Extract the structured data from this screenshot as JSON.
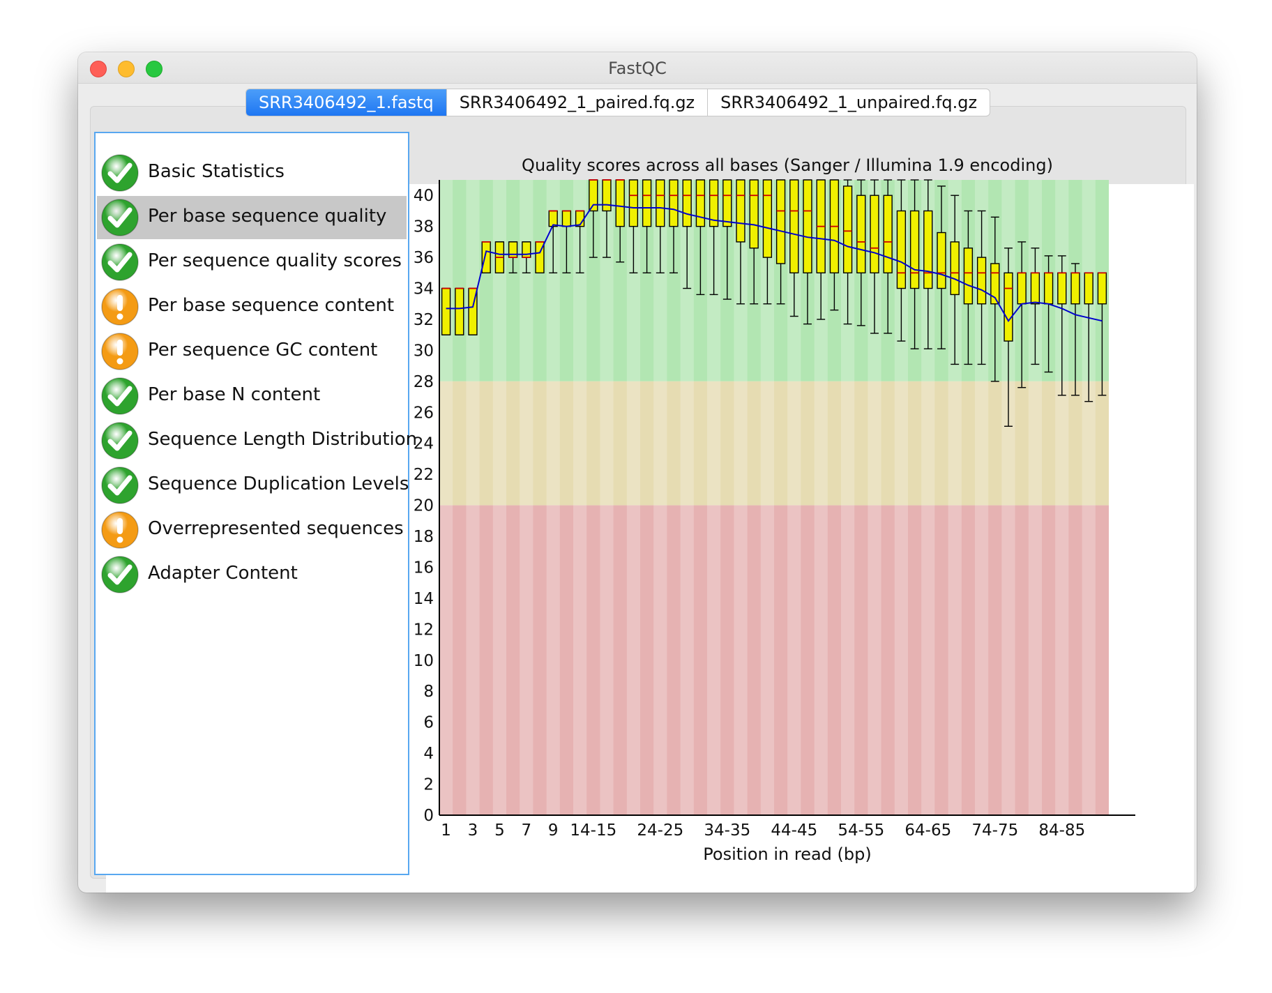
{
  "window": {
    "title": "FastQC"
  },
  "tabs": [
    {
      "label": "SRR3406492_1.fastq",
      "active": true
    },
    {
      "label": "SRR3406492_1_paired.fq.gz",
      "active": false
    },
    {
      "label": "SRR3406492_1_unpaired.fq.gz",
      "active": false
    }
  ],
  "modules": [
    {
      "label": "Basic Statistics",
      "status": "pass",
      "icon": "pass-check-icon"
    },
    {
      "label": "Per base sequence quality",
      "status": "pass",
      "icon": "pass-check-icon",
      "selected": true
    },
    {
      "label": "Per sequence quality scores",
      "status": "pass",
      "icon": "pass-check-icon"
    },
    {
      "label": "Per base sequence content",
      "status": "warn",
      "icon": "warning-exclamation-icon"
    },
    {
      "label": "Per sequence GC content",
      "status": "warn",
      "icon": "warning-exclamation-icon"
    },
    {
      "label": "Per base N content",
      "status": "pass",
      "icon": "pass-check-icon"
    },
    {
      "label": "Sequence Length Distribution",
      "status": "pass",
      "icon": "pass-check-icon"
    },
    {
      "label": "Sequence Duplication Levels",
      "status": "pass",
      "icon": "pass-check-icon"
    },
    {
      "label": "Overrepresented sequences",
      "status": "warn",
      "icon": "warning-exclamation-icon"
    },
    {
      "label": "Adapter Content",
      "status": "pass",
      "icon": "pass-check-icon"
    }
  ],
  "colors": {
    "good_zone": "#b2e6b2",
    "warn_zone": "#e6dcb2",
    "bad_zone": "#e6b2b2",
    "box": "#f0f000",
    "median": "#cc0000",
    "mean_line": "#0000cc",
    "pass": "#2ea32e",
    "warn": "#f49b14"
  },
  "chart_data": {
    "type": "box",
    "title": "Quality scores across all bases (Sanger / Illumina 1.9 encoding)",
    "xlabel": "Position in read (bp)",
    "ylabel": "",
    "ylim": [
      0,
      41
    ],
    "y_ticks": [
      "0",
      "2",
      "4",
      "6",
      "8",
      "10",
      "12",
      "14",
      "16",
      "18",
      "20",
      "22",
      "24",
      "26",
      "28",
      "30",
      "32",
      "34",
      "36",
      "38",
      "40"
    ],
    "x_tick_labels": [
      "1",
      "3",
      "5",
      "7",
      "9",
      "14-15",
      "24-25",
      "34-35",
      "44-45",
      "54-55",
      "64-65",
      "74-75",
      "84-85"
    ],
    "x_tick_positions": [
      0,
      2,
      4,
      6,
      8,
      11,
      16,
      21,
      26,
      31,
      36,
      41,
      46
    ],
    "zones": [
      {
        "name": "good",
        "from": 28,
        "to": 41
      },
      {
        "name": "warn",
        "from": 20,
        "to": 28
      },
      {
        "name": "bad",
        "from": 0,
        "to": 20
      }
    ],
    "positions": [
      {
        "lw": 31,
        "q1": 31,
        "med": 34,
        "q3": 34,
        "uw": 34,
        "mean": 32.7
      },
      {
        "lw": 31,
        "q1": 31,
        "med": 34,
        "q3": 34,
        "uw": 34,
        "mean": 32.7
      },
      {
        "lw": 31,
        "q1": 31,
        "med": 34,
        "q3": 34,
        "uw": 34,
        "mean": 32.8
      },
      {
        "lw": 35,
        "q1": 35,
        "med": 37,
        "q3": 37,
        "uw": 37,
        "mean": 36.4
      },
      {
        "lw": 35,
        "q1": 35,
        "med": 36,
        "q3": 37,
        "uw": 37,
        "mean": 36.2
      },
      {
        "lw": 35,
        "q1": 36,
        "med": 36,
        "q3": 37,
        "uw": 37,
        "mean": 36.2
      },
      {
        "lw": 35,
        "q1": 36,
        "med": 36,
        "q3": 37,
        "uw": 37,
        "mean": 36.2
      },
      {
        "lw": 35,
        "q1": 35,
        "med": 37,
        "q3": 37,
        "uw": 37,
        "mean": 36.3
      },
      {
        "lw": 35,
        "q1": 38,
        "med": 39,
        "q3": 39,
        "uw": 39,
        "mean": 38.1
      },
      {
        "lw": 35,
        "q1": 38,
        "med": 39,
        "q3": 39,
        "uw": 39,
        "mean": 38
      },
      {
        "lw": 35,
        "q1": 38,
        "med": 39,
        "q3": 39,
        "uw": 39,
        "mean": 38.1
      },
      {
        "lw": 36,
        "q1": 39,
        "med": 41,
        "q3": 41,
        "uw": 41,
        "mean": 39.4
      },
      {
        "lw": 36,
        "q1": 39,
        "med": 41,
        "q3": 41,
        "uw": 41,
        "mean": 39.4
      },
      {
        "lw": 35.7,
        "q1": 38,
        "med": 41,
        "q3": 41,
        "uw": 41,
        "mean": 39.3
      },
      {
        "lw": 35,
        "q1": 38,
        "med": 40,
        "q3": 41,
        "uw": 41,
        "mean": 39.2
      },
      {
        "lw": 35,
        "q1": 38,
        "med": 40,
        "q3": 41,
        "uw": 41,
        "mean": 39.2
      },
      {
        "lw": 35,
        "q1": 38,
        "med": 40,
        "q3": 41,
        "uw": 41,
        "mean": 39.2
      },
      {
        "lw": 35,
        "q1": 38,
        "med": 40,
        "q3": 41,
        "uw": 41,
        "mean": 39.1
      },
      {
        "lw": 34,
        "q1": 38,
        "med": 40,
        "q3": 41,
        "uw": 41,
        "mean": 38.8
      },
      {
        "lw": 33.6,
        "q1": 38,
        "med": 40,
        "q3": 41,
        "uw": 41,
        "mean": 38.6
      },
      {
        "lw": 33.6,
        "q1": 38,
        "med": 40,
        "q3": 41,
        "uw": 41,
        "mean": 38.4
      },
      {
        "lw": 33.3,
        "q1": 38,
        "med": 40,
        "q3": 41,
        "uw": 41,
        "mean": 38.3
      },
      {
        "lw": 33,
        "q1": 37,
        "med": 40,
        "q3": 41,
        "uw": 41,
        "mean": 38.2
      },
      {
        "lw": 33,
        "q1": 36.6,
        "med": 40,
        "q3": 41,
        "uw": 41,
        "mean": 38.1
      },
      {
        "lw": 33,
        "q1": 36,
        "med": 40,
        "q3": 41,
        "uw": 41,
        "mean": 37.9
      },
      {
        "lw": 33,
        "q1": 35.6,
        "med": 39,
        "q3": 41,
        "uw": 41,
        "mean": 37.7
      },
      {
        "lw": 32.2,
        "q1": 35,
        "med": 39,
        "q3": 41,
        "uw": 41,
        "mean": 37.5
      },
      {
        "lw": 31.7,
        "q1": 35,
        "med": 39,
        "q3": 41,
        "uw": 41,
        "mean": 37.3
      },
      {
        "lw": 32,
        "q1": 35,
        "med": 38,
        "q3": 41,
        "uw": 41,
        "mean": 37.2
      },
      {
        "lw": 32.6,
        "q1": 35,
        "med": 38,
        "q3": 41,
        "uw": 41,
        "mean": 37.1
      },
      {
        "lw": 31.7,
        "q1": 35,
        "med": 37.7,
        "q3": 40.6,
        "uw": 41,
        "mean": 36.7
      },
      {
        "lw": 31.6,
        "q1": 35,
        "med": 37,
        "q3": 40,
        "uw": 41,
        "mean": 36.5
      },
      {
        "lw": 31.1,
        "q1": 35,
        "med": 36.6,
        "q3": 40,
        "uw": 41,
        "mean": 36.3
      },
      {
        "lw": 31.1,
        "q1": 35,
        "med": 37,
        "q3": 40,
        "uw": 41,
        "mean": 36
      },
      {
        "lw": 30.6,
        "q1": 34,
        "med": 35,
        "q3": 39,
        "uw": 41,
        "mean": 35.7
      },
      {
        "lw": 30.1,
        "q1": 34,
        "med": 35,
        "q3": 39,
        "uw": 41,
        "mean": 35.2
      },
      {
        "lw": 30.1,
        "q1": 34,
        "med": 35,
        "q3": 39,
        "uw": 41,
        "mean": 35.1
      },
      {
        "lw": 30.1,
        "q1": 34,
        "med": 35,
        "q3": 37.6,
        "uw": 40.6,
        "mean": 34.9
      },
      {
        "lw": 29.1,
        "q1": 33.6,
        "med": 35,
        "q3": 37,
        "uw": 40,
        "mean": 34.6
      },
      {
        "lw": 29.1,
        "q1": 33,
        "med": 35,
        "q3": 36.6,
        "uw": 39,
        "mean": 34.2
      },
      {
        "lw": 29.1,
        "q1": 33,
        "med": 35,
        "q3": 36,
        "uw": 39,
        "mean": 33.9
      },
      {
        "lw": 28,
        "q1": 33,
        "med": 35,
        "q3": 35.6,
        "uw": 38.6,
        "mean": 33.4
      },
      {
        "lw": 25.1,
        "q1": 30.6,
        "med": 34,
        "q3": 35,
        "uw": 36.6,
        "mean": 31.9
      },
      {
        "lw": 27.6,
        "q1": 33,
        "med": 35,
        "q3": 35,
        "uw": 37,
        "mean": 33
      },
      {
        "lw": 29.1,
        "q1": 33,
        "med": 35,
        "q3": 35,
        "uw": 36.6,
        "mean": 33.1
      },
      {
        "lw": 28.6,
        "q1": 33,
        "med": 35,
        "q3": 35,
        "uw": 36.1,
        "mean": 33
      },
      {
        "lw": 27.1,
        "q1": 33,
        "med": 35,
        "q3": 35,
        "uw": 36.1,
        "mean": 32.7
      },
      {
        "lw": 27.1,
        "q1": 33,
        "med": 35,
        "q3": 35,
        "uw": 35.6,
        "mean": 32.3
      },
      {
        "lw": 26.7,
        "q1": 33,
        "med": 35,
        "q3": 35,
        "uw": 35,
        "mean": 32.1
      },
      {
        "lw": 27.1,
        "q1": 33,
        "med": 35,
        "q3": 35,
        "uw": 35,
        "mean": 31.9
      }
    ]
  }
}
